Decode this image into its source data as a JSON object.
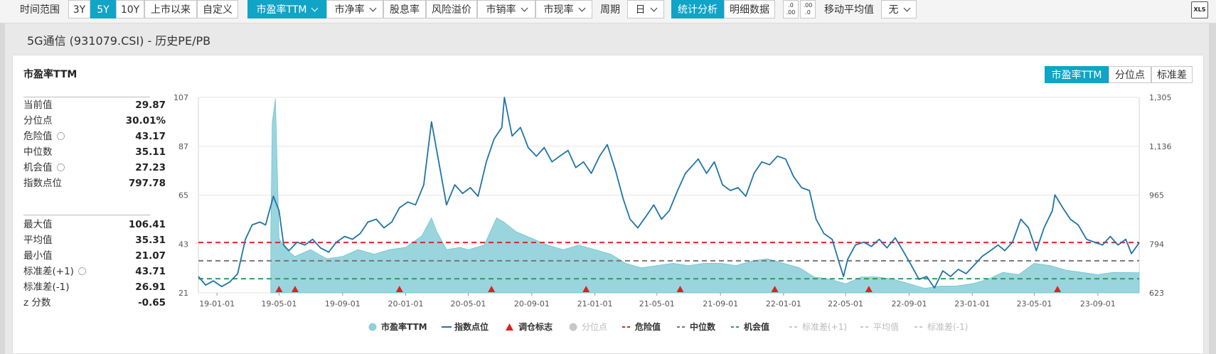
{
  "toolbar": {
    "range_label": "时间范围",
    "range_buttons": [
      "3Y",
      "5Y",
      "10Y",
      "上市以来",
      "自定义"
    ],
    "range_active": "5Y",
    "metric_buttons": [
      "市盈率TTM",
      "市净率",
      "股息率",
      "风险溢价",
      "市销率",
      "市现率"
    ],
    "metric_active": "市盈率TTM",
    "period_label": "周期",
    "period_value": "日",
    "mode_buttons": [
      "统计分析",
      "明细数据"
    ],
    "mode_active": "统计分析",
    "dec_inc_icon": ".0\n.00",
    "dec_dec_icon": ".00\n.0",
    "ma_label": "移动平均值",
    "ma_value": "无",
    "export_icon": "XLS"
  },
  "page_title": "5G通信 (931079.CSI) - 历史PE/PB",
  "panel": {
    "title": "市盈率TTM",
    "toggles": [
      "市盈率TTM",
      "分位点",
      "标准差"
    ],
    "toggle_active": "市盈率TTM"
  },
  "stats_group1": [
    {
      "label": "当前值",
      "value": "29.87",
      "gear": false
    },
    {
      "label": "分位点",
      "value": "30.01%",
      "gear": false
    },
    {
      "label": "危险值",
      "value": "43.17",
      "gear": true
    },
    {
      "label": "中位数",
      "value": "35.11",
      "gear": false
    },
    {
      "label": "机会值",
      "value": "27.23",
      "gear": true
    },
    {
      "label": "指数点位",
      "value": "797.78",
      "gear": false
    }
  ],
  "stats_group2": [
    {
      "label": "最大值",
      "value": "106.41",
      "gear": false
    },
    {
      "label": "平均值",
      "value": "35.31",
      "gear": false
    },
    {
      "label": "最小值",
      "value": "21.07",
      "gear": false
    },
    {
      "label": "标准差(+1)",
      "value": "43.71",
      "gear": true
    },
    {
      "label": "标准差(-1)",
      "value": "26.91",
      "gear": false
    },
    {
      "label": "z 分数",
      "value": "-0.65",
      "gear": false
    }
  ],
  "chart_data": {
    "type": "area",
    "x_ticks": [
      "19-01-01",
      "19-05-01",
      "19-09-01",
      "20-01-01",
      "20-05-01",
      "20-09-01",
      "21-01-01",
      "21-05-01",
      "21-09-01",
      "22-01-01",
      "22-05-01",
      "22-09-01",
      "23-01-01",
      "23-05-01",
      "23-09-01"
    ],
    "y_left_ticks": [
      "107",
      "87",
      "65",
      "43",
      "21"
    ],
    "y_left_range": [
      21,
      107
    ],
    "y_right_ticks": [
      "1,305",
      "1,136",
      "965",
      "794",
      "623"
    ],
    "y_right_range": [
      623,
      1305
    ],
    "x_domain": [
      "2018-11-26",
      "2023-11-20"
    ],
    "pe_start": "2019-04-15",
    "series": [
      {
        "name": "市盈率TTM",
        "axis": "left",
        "color": "#8fd0da",
        "points": [
          [
            "2019-04-15",
            47
          ],
          [
            "2019-04-18",
            96
          ],
          [
            "2019-04-24",
            106.4
          ],
          [
            "2019-05-01",
            45
          ],
          [
            "2019-05-15",
            40
          ],
          [
            "2019-06-01",
            37
          ],
          [
            "2019-07-01",
            40
          ],
          [
            "2019-08-01",
            36
          ],
          [
            "2019-09-01",
            37
          ],
          [
            "2019-10-01",
            40
          ],
          [
            "2019-11-01",
            38
          ],
          [
            "2019-12-01",
            40
          ],
          [
            "2020-01-01",
            41
          ],
          [
            "2020-02-01",
            46
          ],
          [
            "2020-02-20",
            54
          ],
          [
            "2020-03-01",
            48
          ],
          [
            "2020-03-20",
            40
          ],
          [
            "2020-04-15",
            41
          ],
          [
            "2020-05-01",
            40
          ],
          [
            "2020-06-01",
            42
          ],
          [
            "2020-06-25",
            54
          ],
          [
            "2020-07-10",
            52
          ],
          [
            "2020-08-01",
            48
          ],
          [
            "2020-09-01",
            45
          ],
          [
            "2020-10-01",
            42
          ],
          [
            "2020-11-01",
            40
          ],
          [
            "2020-12-01",
            42
          ],
          [
            "2021-01-01",
            40
          ],
          [
            "2021-02-01",
            38
          ],
          [
            "2021-03-01",
            34
          ],
          [
            "2021-04-01",
            32
          ],
          [
            "2021-05-01",
            33
          ],
          [
            "2021-06-01",
            34
          ],
          [
            "2021-07-01",
            33
          ],
          [
            "2021-08-01",
            34
          ],
          [
            "2021-09-01",
            34
          ],
          [
            "2021-10-01",
            33
          ],
          [
            "2021-11-01",
            35
          ],
          [
            "2021-12-01",
            36
          ],
          [
            "2022-01-01",
            34
          ],
          [
            "2022-02-01",
            32
          ],
          [
            "2022-03-01",
            28
          ],
          [
            "2022-04-01",
            27
          ],
          [
            "2022-05-01",
            25
          ],
          [
            "2022-06-01",
            28
          ],
          [
            "2022-07-01",
            28
          ],
          [
            "2022-08-01",
            27
          ],
          [
            "2022-09-01",
            25
          ],
          [
            "2022-10-01",
            23
          ],
          [
            "2022-11-01",
            24
          ],
          [
            "2022-12-01",
            24
          ],
          [
            "2023-01-01",
            25
          ],
          [
            "2023-02-01",
            27
          ],
          [
            "2023-03-01",
            30
          ],
          [
            "2023-04-01",
            29
          ],
          [
            "2023-05-01",
            34
          ],
          [
            "2023-06-01",
            33
          ],
          [
            "2023-07-01",
            31
          ],
          [
            "2023-08-01",
            30
          ],
          [
            "2023-09-01",
            29
          ],
          [
            "2023-10-01",
            30
          ],
          [
            "2023-11-20",
            29.87
          ]
        ]
      },
      {
        "name": "指数点位",
        "axis": "right",
        "color": "#1f74a8",
        "points": [
          [
            "2018-11-26",
            680
          ],
          [
            "2018-12-10",
            650
          ],
          [
            "2018-12-25",
            665
          ],
          [
            "2019-01-10",
            645
          ],
          [
            "2019-01-25",
            660
          ],
          [
            "2019-02-10",
            690
          ],
          [
            "2019-02-25",
            810
          ],
          [
            "2019-03-10",
            860
          ],
          [
            "2019-03-25",
            870
          ],
          [
            "2019-04-05",
            860
          ],
          [
            "2019-04-20",
            960
          ],
          [
            "2019-05-01",
            910
          ],
          [
            "2019-05-10",
            790
          ],
          [
            "2019-05-20",
            770
          ],
          [
            "2019-06-05",
            800
          ],
          [
            "2019-06-20",
            790
          ],
          [
            "2019-07-05",
            810
          ],
          [
            "2019-07-20",
            780
          ],
          [
            "2019-08-05",
            765
          ],
          [
            "2019-08-20",
            800
          ],
          [
            "2019-09-05",
            820
          ],
          [
            "2019-09-20",
            810
          ],
          [
            "2019-10-05",
            830
          ],
          [
            "2019-10-20",
            870
          ],
          [
            "2019-11-05",
            880
          ],
          [
            "2019-11-20",
            850
          ],
          [
            "2019-12-05",
            870
          ],
          [
            "2019-12-20",
            920
          ],
          [
            "2020-01-05",
            940
          ],
          [
            "2020-01-20",
            930
          ],
          [
            "2020-02-05",
            1000
          ],
          [
            "2020-02-20",
            1220
          ],
          [
            "2020-03-05",
            1080
          ],
          [
            "2020-03-20",
            930
          ],
          [
            "2020-04-05",
            1000
          ],
          [
            "2020-04-20",
            970
          ],
          [
            "2020-05-05",
            990
          ],
          [
            "2020-05-20",
            960
          ],
          [
            "2020-06-05",
            1080
          ],
          [
            "2020-06-20",
            1160
          ],
          [
            "2020-07-05",
            1200
          ],
          [
            "2020-07-10",
            1305
          ],
          [
            "2020-07-25",
            1170
          ],
          [
            "2020-08-10",
            1200
          ],
          [
            "2020-08-25",
            1130
          ],
          [
            "2020-09-10",
            1100
          ],
          [
            "2020-09-25",
            1130
          ],
          [
            "2020-10-10",
            1080
          ],
          [
            "2020-10-25",
            1100
          ],
          [
            "2020-11-10",
            1120
          ],
          [
            "2020-11-25",
            1060
          ],
          [
            "2020-12-10",
            1080
          ],
          [
            "2020-12-25",
            1040
          ],
          [
            "2021-01-10",
            1100
          ],
          [
            "2021-01-25",
            1140
          ],
          [
            "2021-02-10",
            1050
          ],
          [
            "2021-02-25",
            950
          ],
          [
            "2021-03-10",
            880
          ],
          [
            "2021-03-25",
            850
          ],
          [
            "2021-04-10",
            890
          ],
          [
            "2021-04-25",
            930
          ],
          [
            "2021-05-10",
            880
          ],
          [
            "2021-05-25",
            910
          ],
          [
            "2021-06-10",
            980
          ],
          [
            "2021-06-25",
            1040
          ],
          [
            "2021-07-10",
            1070
          ],
          [
            "2021-07-20",
            1090
          ],
          [
            "2021-08-05",
            1040
          ],
          [
            "2021-08-20",
            1080
          ],
          [
            "2021-09-05",
            1000
          ],
          [
            "2021-09-20",
            980
          ],
          [
            "2021-10-05",
            990
          ],
          [
            "2021-10-20",
            960
          ],
          [
            "2021-11-05",
            1040
          ],
          [
            "2021-11-20",
            1080
          ],
          [
            "2021-12-05",
            1070
          ],
          [
            "2021-12-20",
            1100
          ],
          [
            "2022-01-05",
            1090
          ],
          [
            "2022-01-20",
            1030
          ],
          [
            "2022-02-05",
            990
          ],
          [
            "2022-02-20",
            980
          ],
          [
            "2022-03-05",
            880
          ],
          [
            "2022-03-20",
            830
          ],
          [
            "2022-04-05",
            810
          ],
          [
            "2022-04-20",
            720
          ],
          [
            "2022-04-27",
            680
          ],
          [
            "2022-05-05",
            740
          ],
          [
            "2022-05-20",
            790
          ],
          [
            "2022-06-05",
            800
          ],
          [
            "2022-06-20",
            785
          ],
          [
            "2022-07-05",
            810
          ],
          [
            "2022-07-20",
            780
          ],
          [
            "2022-08-05",
            815
          ],
          [
            "2022-08-20",
            770
          ],
          [
            "2022-09-05",
            720
          ],
          [
            "2022-09-20",
            670
          ],
          [
            "2022-10-05",
            680
          ],
          [
            "2022-10-20",
            640
          ],
          [
            "2022-11-05",
            700
          ],
          [
            "2022-11-20",
            680
          ],
          [
            "2022-12-05",
            705
          ],
          [
            "2022-12-20",
            690
          ],
          [
            "2023-01-05",
            720
          ],
          [
            "2023-01-20",
            750
          ],
          [
            "2023-02-05",
            770
          ],
          [
            "2023-02-20",
            790
          ],
          [
            "2023-03-05",
            770
          ],
          [
            "2023-03-20",
            800
          ],
          [
            "2023-04-05",
            880
          ],
          [
            "2023-04-20",
            850
          ],
          [
            "2023-05-05",
            770
          ],
          [
            "2023-05-20",
            850
          ],
          [
            "2023-06-05",
            910
          ],
          [
            "2023-06-10",
            965
          ],
          [
            "2023-06-25",
            920
          ],
          [
            "2023-07-10",
            880
          ],
          [
            "2023-07-25",
            860
          ],
          [
            "2023-08-10",
            810
          ],
          [
            "2023-08-25",
            800
          ],
          [
            "2023-09-10",
            790
          ],
          [
            "2023-09-25",
            820
          ],
          [
            "2023-10-10",
            790
          ],
          [
            "2023-10-25",
            810
          ],
          [
            "2023-11-05",
            760
          ],
          [
            "2023-11-20",
            797.78
          ]
        ]
      }
    ],
    "reference_lines": [
      {
        "name": "危险值",
        "value": 43.17,
        "color": "#d62728",
        "style": "dashed"
      },
      {
        "name": "中位数",
        "value": 35.11,
        "color": "#777777",
        "style": "dashed"
      },
      {
        "name": "机会值",
        "value": 27.23,
        "color": "#2ca05a",
        "style": "dashed"
      }
    ],
    "rebalance_markers": [
      "2019-05-01",
      "2019-06-01",
      "2019-12-20",
      "2020-06-15",
      "2020-12-15",
      "2021-06-15",
      "2021-12-15",
      "2022-06-15",
      "2023-06-15"
    ],
    "legend": [
      {
        "name": "市盈率TTM",
        "symbol": "circle",
        "color": "#8fd0da",
        "active": true
      },
      {
        "name": "指数点位",
        "symbol": "line",
        "color": "#1f74a8",
        "active": true
      },
      {
        "name": "调仓标志",
        "symbol": "triangle",
        "color": "#e02020",
        "active": true
      },
      {
        "name": "分位点",
        "symbol": "circle",
        "color": "#c8c8c8",
        "active": false
      },
      {
        "name": "危险值",
        "symbol": "dash",
        "color": "#d62728",
        "active": true
      },
      {
        "name": "中位数",
        "symbol": "dash",
        "color": "#777777",
        "active": true
      },
      {
        "name": "机会值",
        "symbol": "dash",
        "color": "#2ca05a",
        "active": true
      },
      {
        "name": "标准差(+1)",
        "symbol": "dash",
        "color": "#c8c8c8",
        "active": false
      },
      {
        "name": "平均值",
        "symbol": "dash",
        "color": "#c8c8c8",
        "active": false
      },
      {
        "name": "标准差(-1)",
        "symbol": "dash",
        "color": "#c8c8c8",
        "active": false
      }
    ],
    "legend_position": "bottom",
    "grid": true
  }
}
